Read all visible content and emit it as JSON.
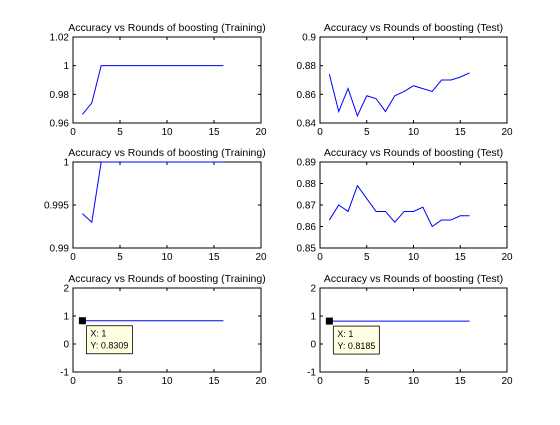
{
  "chart_data": [
    {
      "type": "line",
      "title": "Accuracy vs Rounds of boosting (Training)",
      "xlim": [
        0,
        20
      ],
      "ylim": [
        0.96,
        1.02
      ],
      "xticks": [
        0,
        5,
        10,
        15,
        20
      ],
      "yticks": [
        0.96,
        0.98,
        1,
        1.02
      ],
      "ytick_labels": [
        "0.96",
        "0.98",
        "1",
        "1.02"
      ],
      "series": [
        {
          "color": "#0000ff",
          "x": [
            1,
            2,
            3,
            4,
            5,
            6,
            7,
            8,
            9,
            10,
            11,
            12,
            13,
            14,
            15,
            16
          ],
          "y": [
            0.966,
            0.974,
            1,
            1,
            1,
            1,
            1,
            1,
            1,
            1,
            1,
            1,
            1,
            1,
            1,
            1
          ]
        }
      ]
    },
    {
      "type": "line",
      "title": "Accuracy vs Rounds of boosting (Test)",
      "xlim": [
        0,
        20
      ],
      "ylim": [
        0.84,
        0.9
      ],
      "xticks": [
        0,
        5,
        10,
        15,
        20
      ],
      "yticks": [
        0.84,
        0.86,
        0.88,
        0.9
      ],
      "ytick_labels": [
        "0.84",
        "0.86",
        "0.88",
        "0.9"
      ],
      "series": [
        {
          "color": "#0000ff",
          "x": [
            1,
            2,
            3,
            4,
            5,
            6,
            7,
            8,
            9,
            10,
            11,
            12,
            13,
            14,
            15,
            16
          ],
          "y": [
            0.874,
            0.848,
            0.864,
            0.845,
            0.859,
            0.857,
            0.848,
            0.859,
            0.862,
            0.866,
            0.864,
            0.862,
            0.87,
            0.87,
            0.872,
            0.875
          ]
        }
      ]
    },
    {
      "type": "line",
      "title": "Accuracy vs Rounds of boosting (Training)",
      "xlim": [
        0,
        20
      ],
      "ylim": [
        0.99,
        1
      ],
      "xticks": [
        0,
        5,
        10,
        15,
        20
      ],
      "yticks": [
        0.99,
        0.995,
        1
      ],
      "ytick_labels": [
        "0.99",
        "0.995",
        "1"
      ],
      "series": [
        {
          "color": "#0000ff",
          "x": [
            1,
            2,
            3,
            4,
            5,
            6,
            7,
            8,
            9,
            10,
            11,
            12,
            13,
            14,
            15,
            16
          ],
          "y": [
            0.994,
            0.993,
            1,
            1,
            1,
            1,
            1,
            1,
            1,
            1,
            1,
            1,
            1,
            1,
            1,
            1
          ]
        }
      ]
    },
    {
      "type": "line",
      "title": "Accuracy vs Rounds of boosting (Test)",
      "xlim": [
        0,
        20
      ],
      "ylim": [
        0.85,
        0.89
      ],
      "xticks": [
        0,
        5,
        10,
        15,
        20
      ],
      "yticks": [
        0.85,
        0.86,
        0.87,
        0.88,
        0.89
      ],
      "ytick_labels": [
        "0.85",
        "0.86",
        "0.87",
        "0.88",
        "0.89"
      ],
      "series": [
        {
          "color": "#0000ff",
          "x": [
            1,
            2,
            3,
            4,
            5,
            6,
            7,
            8,
            9,
            10,
            11,
            12,
            13,
            14,
            15,
            16
          ],
          "y": [
            0.863,
            0.87,
            0.867,
            0.879,
            0.873,
            0.867,
            0.867,
            0.862,
            0.867,
            0.867,
            0.869,
            0.86,
            0.863,
            0.863,
            0.865,
            0.865
          ]
        }
      ]
    },
    {
      "type": "line",
      "title": "Accuracy vs Rounds of boosting (Training)",
      "xlim": [
        0,
        20
      ],
      "ylim": [
        -1,
        2
      ],
      "xticks": [
        0,
        5,
        10,
        15,
        20
      ],
      "yticks": [
        -1,
        0,
        1,
        2
      ],
      "ytick_labels": [
        "-1",
        "0",
        "1",
        "2"
      ],
      "series": [
        {
          "color": "#0000ff",
          "x": [
            1,
            2,
            3,
            4,
            5,
            6,
            7,
            8,
            9,
            10,
            11,
            12,
            13,
            14,
            15,
            16
          ],
          "y": [
            0.8309,
            0.8309,
            0.8309,
            0.8309,
            0.8309,
            0.8309,
            0.8309,
            0.8309,
            0.8309,
            0.8309,
            0.8309,
            0.8309,
            0.8309,
            0.8309,
            0.8309,
            0.8309
          ]
        }
      ],
      "datatip": {
        "x": 1,
        "y": 0.8309,
        "line1": "X: 1",
        "line2": "Y: 0.8309"
      }
    },
    {
      "type": "line",
      "title": "Accuracy vs Rounds of boosting (Test)",
      "xlim": [
        0,
        20
      ],
      "ylim": [
        -1,
        2
      ],
      "xticks": [
        0,
        5,
        10,
        15,
        20
      ],
      "yticks": [
        -1,
        0,
        1,
        2
      ],
      "ytick_labels": [
        "-1",
        "0",
        "1",
        "2"
      ],
      "series": [
        {
          "color": "#0000ff",
          "x": [
            1,
            2,
            3,
            4,
            5,
            6,
            7,
            8,
            9,
            10,
            11,
            12,
            13,
            14,
            15,
            16
          ],
          "y": [
            0.8185,
            0.8185,
            0.8185,
            0.8185,
            0.8185,
            0.8185,
            0.8185,
            0.8185,
            0.8185,
            0.8185,
            0.8185,
            0.8185,
            0.8185,
            0.8185,
            0.8185,
            0.8185
          ]
        }
      ],
      "datatip": {
        "x": 1,
        "y": 0.8185,
        "line1": "X: 1",
        "line2": "Y: 0.8185"
      }
    }
  ]
}
